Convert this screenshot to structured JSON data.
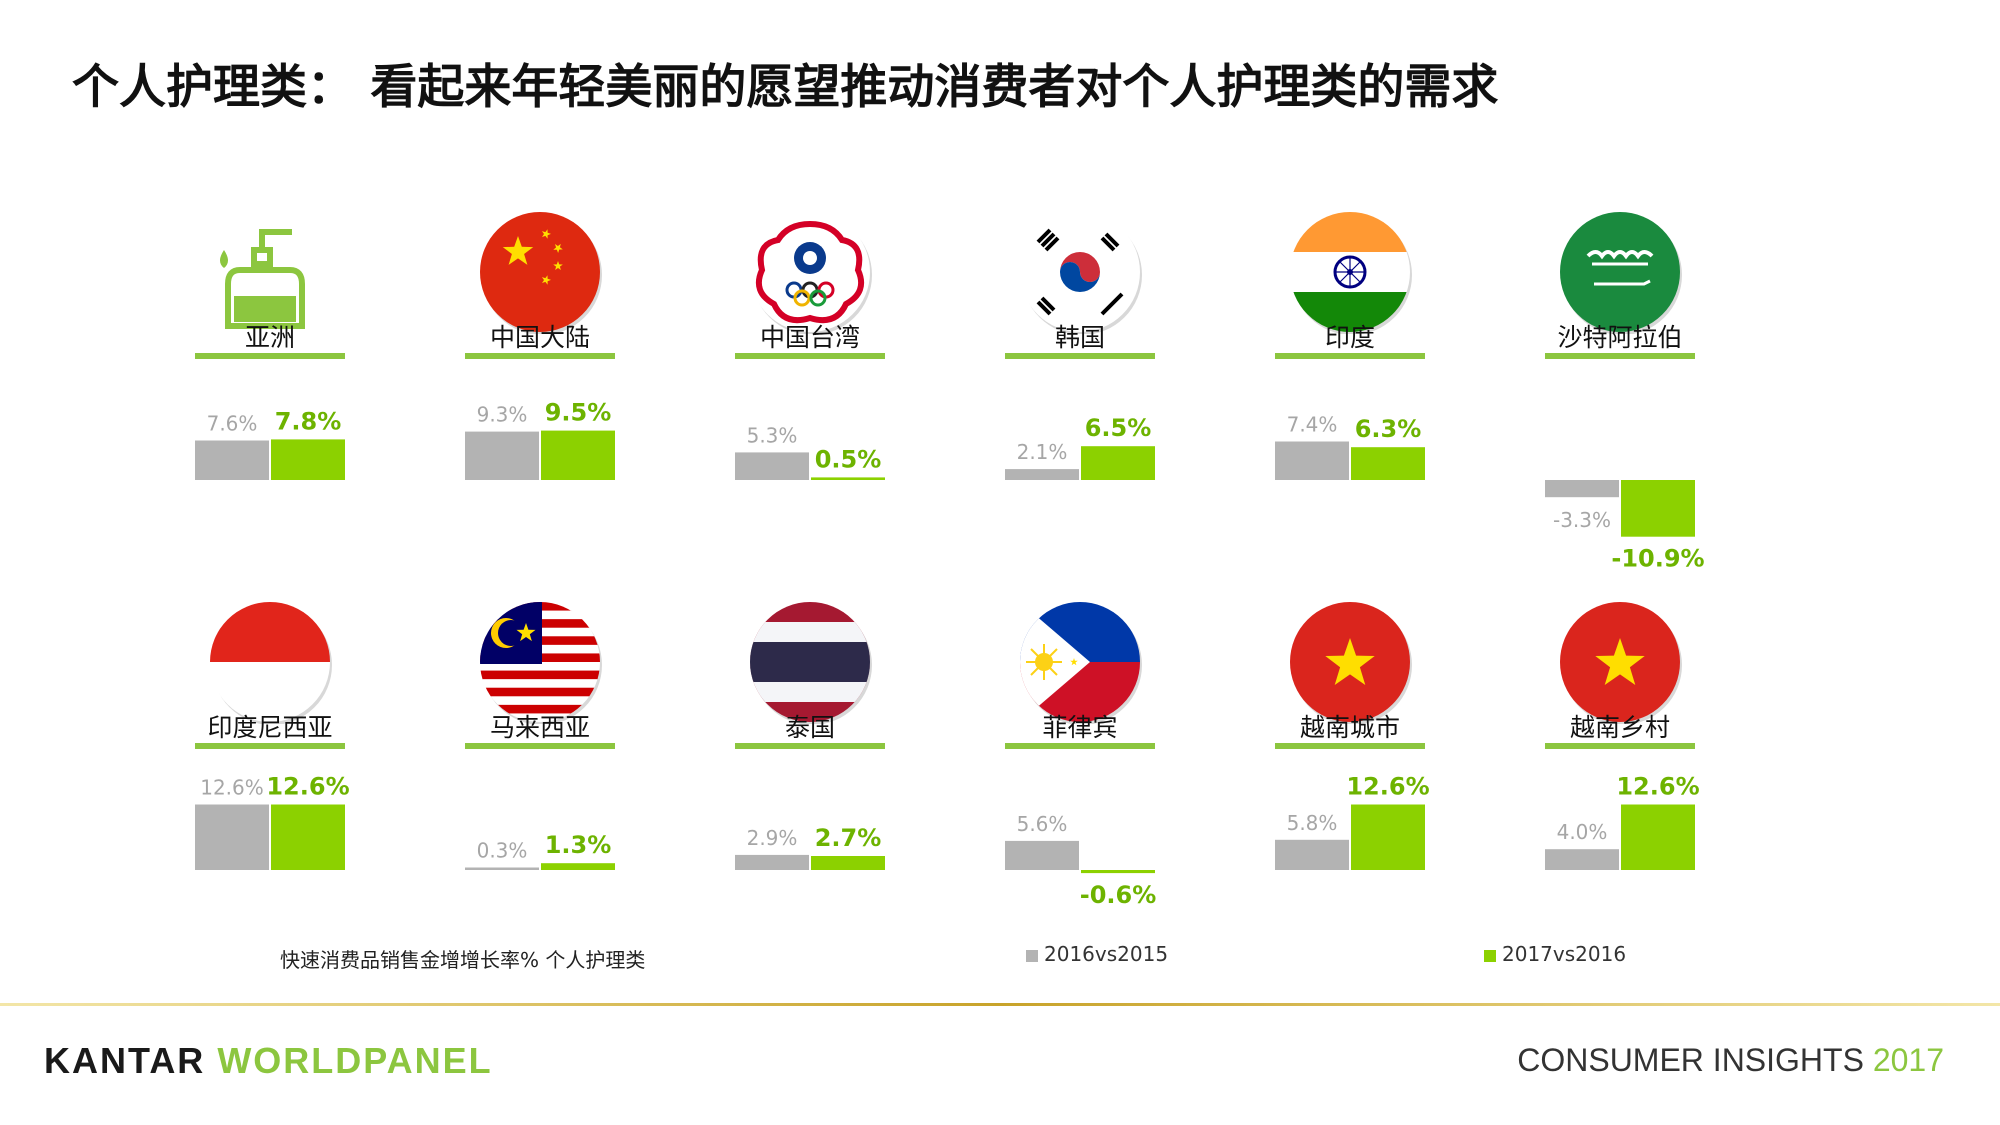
{
  "title": "个人护理类： 看起来年轻美丽的愿望推动消费者对个人护理类的需求",
  "colors": {
    "series_2016": "#b3b3b3",
    "series_2017": "#8cd100",
    "label_2016": "#a6a6a6",
    "label_2017": "#6db300",
    "underline": "#8cc63f"
  },
  "footnote": "快速消费品销售金增增长率%  个人护理类",
  "legend": {
    "s1": "2016vs2015",
    "s2": "2017vs2016"
  },
  "brand": {
    "left": "KANTAR",
    "right": "WORLDPANEL"
  },
  "footer": {
    "text": "CONSUMER INSIGHTS",
    "year": "2017"
  },
  "regions": [
    {
      "name": "亚洲",
      "icon": "pump-bottle-icon"
    },
    {
      "name": "中国大陆",
      "icon": "flag-china-icon"
    },
    {
      "name": "中国台湾",
      "icon": "flag-chinese-taipei-icon"
    },
    {
      "name": "韩国",
      "icon": "flag-korea-icon"
    },
    {
      "name": "印度",
      "icon": "flag-india-icon"
    },
    {
      "name": "沙特阿拉伯",
      "icon": "flag-saudi-icon"
    },
    {
      "name": "印度尼西亚",
      "icon": "flag-indonesia-icon"
    },
    {
      "name": "马来西亚",
      "icon": "flag-malaysia-icon"
    },
    {
      "name": "泰国",
      "icon": "flag-thailand-icon"
    },
    {
      "name": "菲律宾",
      "icon": "flag-philippines-icon"
    },
    {
      "name": "越南城市",
      "icon": "flag-vietnam-icon"
    },
    {
      "name": "越南乡村",
      "icon": "flag-vietnam-icon"
    }
  ],
  "chart_data": {
    "type": "bar",
    "series_names": [
      "2016vs2015",
      "2017vs2016"
    ],
    "categories": [
      "亚洲",
      "中国大陆",
      "中国台湾",
      "韩国",
      "印度",
      "沙特阿拉伯",
      "印度尼西亚",
      "马来西亚",
      "泰国",
      "菲律宾",
      "越南城市",
      "越南乡村"
    ],
    "series": [
      {
        "name": "2016vs2015",
        "values": [
          7.6,
          9.3,
          5.3,
          2.1,
          7.4,
          -3.3,
          12.6,
          0.3,
          2.9,
          5.6,
          5.8,
          4.0
        ],
        "labels": [
          "7.6%",
          "9.3%",
          "5.3%",
          "2.1%",
          "7.4%",
          "-3.3%",
          "12.6%",
          "0.3%",
          "2.9%",
          "5.6%",
          "5.8%",
          "4.0%"
        ]
      },
      {
        "name": "2017vs2016",
        "values": [
          7.8,
          9.5,
          0.5,
          6.5,
          6.3,
          -10.9,
          12.6,
          1.3,
          2.7,
          -0.6,
          12.6,
          12.6
        ],
        "labels": [
          "7.8%",
          "9.5%",
          "0.5%",
          "6.5%",
          "6.3%",
          "-10.9%",
          "12.6%",
          "1.3%",
          "2.7%",
          "-0.6%",
          "12.6%",
          "12.6%"
        ]
      }
    ],
    "unit": "%"
  }
}
